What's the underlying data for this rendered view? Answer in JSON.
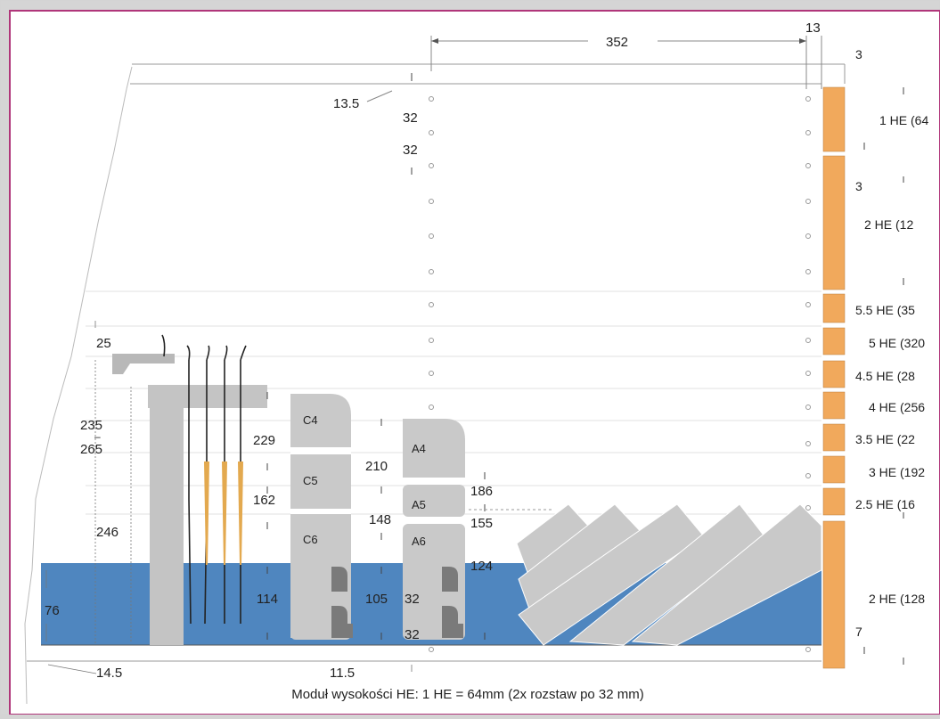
{
  "top": {
    "width352": "352",
    "width13": "13",
    "gap3": "3",
    "offset13_5": "13.5",
    "pitch_a": "32",
    "pitch_b": "32"
  },
  "he_labels": [
    "1 HE (64",
    "2 HE (12",
    "5.5 HE (35",
    "5 HE (320",
    "4.5 HE (28",
    "4 HE (256",
    "3.5 HE (22",
    "3 HE (192",
    "2.5 HE (16",
    "2 HE (128"
  ],
  "right_small": {
    "a": "3",
    "b": "3",
    "c": "7"
  },
  "left_dims": {
    "d25": "25",
    "d235": "235",
    "dash": "–",
    "d265": "265",
    "d246": "246",
    "d76": "76",
    "d14_5": "14.5",
    "d11_5": "11.5"
  },
  "c_dims": {
    "d229": "229",
    "d162": "162",
    "d114": "114"
  },
  "c_labels": [
    "C4",
    "C5",
    "C6"
  ],
  "a_dims": {
    "d210": "210",
    "d148": "148",
    "d105": "105",
    "d32a": "32",
    "d32b": "32"
  },
  "a_labels": [
    "A4",
    "A5",
    "A6"
  ],
  "a_right_dims": {
    "d186": "186",
    "d155": "155",
    "d124": "124"
  },
  "caption": "Moduł wysokości HE: 1 HE = 64mm (2x rozstaw po 32 mm)",
  "colors": {
    "frame": "#b0367a",
    "blue": "#4f86bf",
    "orange": "#f1a95c",
    "gray": "#c9c9c9",
    "darkgray": "#7a7a7a"
  }
}
